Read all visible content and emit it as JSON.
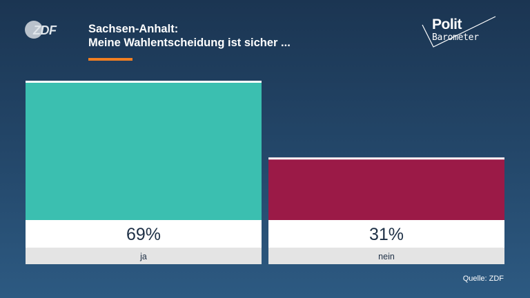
{
  "header": {
    "logo": "ZDF",
    "title_line1": "Sachsen-Anhalt:",
    "title_line2": "Meine Wahlentscheidung ist sicher ...",
    "brand_top": "Polit",
    "brand_bottom": "Barometer"
  },
  "chart_data": {
    "type": "bar",
    "title": "Sachsen-Anhalt: Meine Wahlentscheidung ist sicher ...",
    "categories": [
      "ja",
      "nein"
    ],
    "values": [
      69,
      31
    ],
    "value_labels": [
      "69%",
      "31%"
    ],
    "colors": [
      "#3bbfb0",
      "#9b1a47"
    ],
    "ylim": [
      0,
      69
    ],
    "grid": false,
    "legend": "none"
  },
  "footer": {
    "source": "Quelle: ZDF"
  }
}
